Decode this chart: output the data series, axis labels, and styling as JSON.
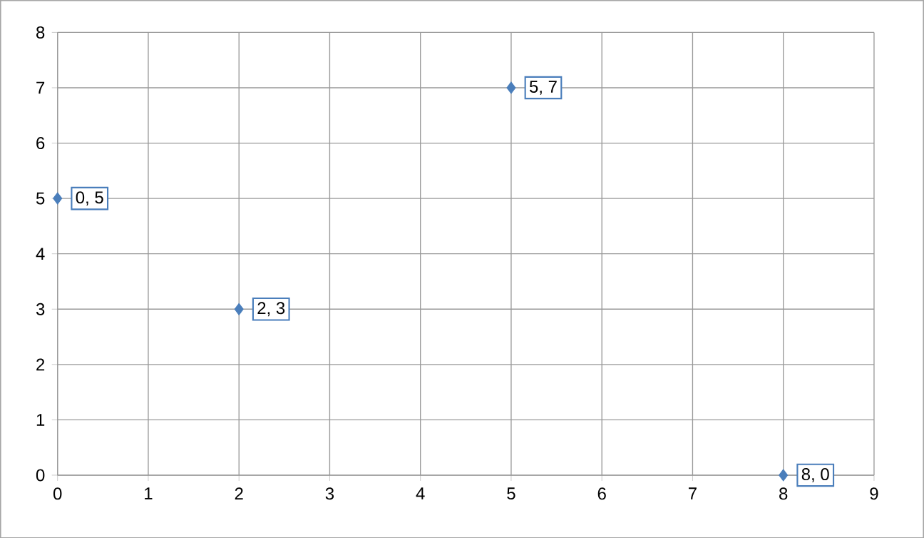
{
  "chart_data": {
    "type": "scatter",
    "x": [
      0,
      2,
      5,
      8
    ],
    "values": [
      5,
      3,
      7,
      0
    ],
    "color": "#4a7ebb",
    "marker": "diamond",
    "xlim": [
      0,
      9
    ],
    "xticks": [
      0,
      1,
      2,
      3,
      4,
      5,
      6,
      7,
      8,
      9
    ],
    "ylim": [
      0,
      8
    ],
    "yticks": [
      0,
      1,
      2,
      3,
      4,
      5,
      6,
      7,
      8
    ],
    "grid": true,
    "annotations": [
      {
        "text": "0, 5",
        "x": 0,
        "y": 5
      },
      {
        "text": "2, 3",
        "x": 2,
        "y": 3
      },
      {
        "text": "5, 7",
        "x": 5,
        "y": 7
      },
      {
        "text": "8, 0",
        "x": 8,
        "y": 0
      }
    ]
  }
}
